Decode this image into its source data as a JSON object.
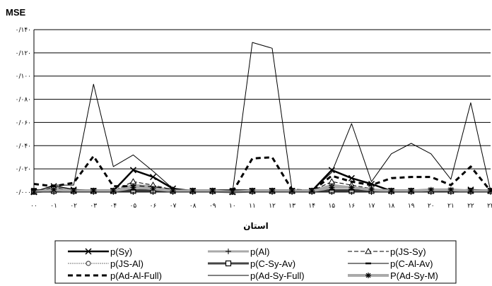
{
  "chart_data": {
    "type": "line",
    "ylabel": "MSE",
    "xlabel": "استان",
    "ylim": [
      0,
      0.14
    ],
    "yticks": [
      "۰/۰۰۰",
      "۰/۰۲۰",
      "۰/۰۴۰",
      "۰/۰۶۰",
      "۰/۰۸۰",
      "۰/۱۰۰",
      "۰/۱۲۰",
      "۰/۱۴۰"
    ],
    "categories": [
      "۰۰",
      "۰۱",
      "۰۲",
      "۰۳",
      "۰۴",
      "۰۵",
      "۰۶",
      "۰۷",
      "۰۸",
      "۰۹",
      "۱۰",
      "۱۱",
      "۱۲",
      "۱۳",
      "۱۴",
      "۱۵",
      "۱۶",
      "۱۷",
      "۱۸",
      "۱۹",
      "۲۰",
      "۲۱",
      "۲۲",
      "۲۳"
    ],
    "grid": true,
    "legend_position": "bottom",
    "series": [
      {
        "name": "p(Sy)",
        "values": [
          0.0,
          0.005,
          0.002,
          0.001,
          0.001,
          0.019,
          0.013,
          0.003,
          0.001,
          0.001,
          0.0,
          0.001,
          0.001,
          0.001,
          0.001,
          0.019,
          0.012,
          0.007,
          0.001,
          0.001,
          0.001,
          0.001,
          0.002,
          0.001
        ]
      },
      {
        "name": "p(Al)",
        "values": [
          0.0,
          0.004,
          0.001,
          0.001,
          0.001,
          0.006,
          0.005,
          0.001,
          0.001,
          0.001,
          0.0,
          0.001,
          0.001,
          0.001,
          0.001,
          0.006,
          0.004,
          0.002,
          0.001,
          0.001,
          0.001,
          0.001,
          0.001,
          0.001
        ]
      },
      {
        "name": "p(JS-Sy)",
        "values": [
          0.0,
          0.004,
          0.001,
          0.001,
          0.001,
          0.009,
          0.006,
          0.002,
          0.001,
          0.001,
          0.0,
          0.001,
          0.001,
          0.001,
          0.001,
          0.009,
          0.006,
          0.003,
          0.001,
          0.001,
          0.001,
          0.001,
          0.001,
          0.001
        ]
      },
      {
        "name": "p(JS-Al)",
        "values": [
          0.0,
          0.003,
          0.001,
          0.001,
          0.001,
          0.004,
          0.003,
          0.001,
          0.001,
          0.001,
          0.0,
          0.001,
          0.001,
          0.001,
          0.001,
          0.004,
          0.003,
          0.002,
          0.001,
          0.001,
          0.001,
          0.001,
          0.001,
          0.001
        ]
      },
      {
        "name": "p(C-Sy-Av)",
        "values": [
          0.001,
          0.001,
          0.001,
          0.001,
          0.001,
          0.001,
          0.001,
          0.001,
          0.001,
          0.001,
          0.001,
          0.001,
          0.001,
          0.001,
          0.001,
          0.001,
          0.001,
          0.001,
          0.001,
          0.001,
          0.001,
          0.001,
          0.001,
          0.001
        ]
      },
      {
        "name": "p(C-Al-Av)",
        "values": [
          0.002,
          0.002,
          0.002,
          0.002,
          0.002,
          0.002,
          0.002,
          0.002,
          0.002,
          0.002,
          0.002,
          0.002,
          0.002,
          0.002,
          0.002,
          0.002,
          0.002,
          0.002,
          0.002,
          0.002,
          0.002,
          0.002,
          0.002,
          0.002
        ]
      },
      {
        "name": "p(Ad-Al-Full)",
        "values": [
          0.007,
          0.005,
          0.008,
          0.031,
          0.005,
          0.005,
          0.004,
          0.002,
          0.001,
          0.001,
          0.0,
          0.029,
          0.03,
          0.002,
          0.001,
          0.014,
          0.009,
          0.006,
          0.012,
          0.013,
          0.013,
          0.006,
          0.022,
          0.001
        ]
      },
      {
        "name": "p(Ad-Sy-Full)",
        "values": [
          0.0,
          0.006,
          0.006,
          0.093,
          0.022,
          0.032,
          0.018,
          0.003,
          0.001,
          0.001,
          0.0,
          0.129,
          0.124,
          0.002,
          0.001,
          0.017,
          0.059,
          0.009,
          0.033,
          0.042,
          0.033,
          0.011,
          0.077,
          0.001
        ]
      },
      {
        "name": "P(Ad-Sy-M)",
        "values": [
          0.0,
          0.002,
          0.001,
          0.001,
          0.001,
          0.004,
          0.003,
          0.001,
          0.001,
          0.001,
          0.0,
          0.001,
          0.001,
          0.001,
          0.001,
          0.004,
          0.004,
          0.002,
          0.001,
          0.001,
          0.002,
          0.002,
          0.001,
          0.001
        ]
      }
    ]
  },
  "colors": {
    "black": "#000000",
    "dark_gray": "#444444",
    "gray": "#777777",
    "light_gray": "#aaaaaa",
    "gridline": "#000000"
  }
}
